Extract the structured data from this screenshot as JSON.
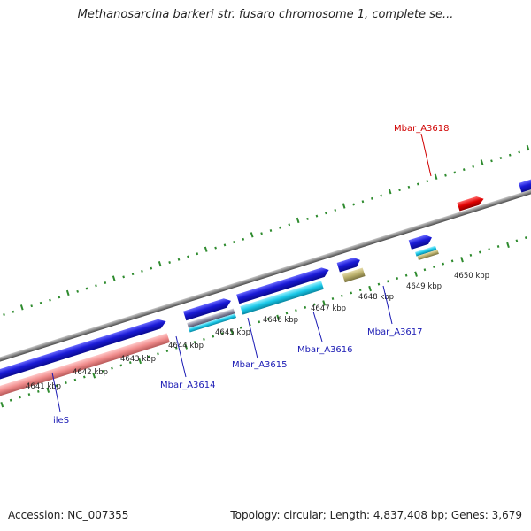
{
  "title": "Methanosarcina barkeri str. fusaro chromosome 1, complete se...",
  "footer": {
    "accession": "Accession: NC_007355",
    "summary": "Topology: circular; Length: 4,837,408 bp; Genes: 3,679"
  },
  "colors": {
    "backbone": "#8a8a8a",
    "tick": "#2e8b2e",
    "gene_forward": "#1a1ad6",
    "gene_selected": "#e00000",
    "rrna": "#f08c8c",
    "feature_cyan": "#19c8e8",
    "feature_olive": "#b8ae6a",
    "label_blue": "#1a1ab4",
    "label_red": "#d00000"
  },
  "tick_labels": [
    {
      "text": "4641 kbp",
      "x": 4641
    },
    {
      "text": "4642 kbp",
      "x": 4642
    },
    {
      "text": "4643 kbp",
      "x": 4643
    },
    {
      "text": "4644 kbp",
      "x": 4644
    },
    {
      "text": "4645 kbp",
      "x": 4645
    },
    {
      "text": "4646 kbp",
      "x": 4646
    },
    {
      "text": "4647 kbp",
      "x": 4647
    },
    {
      "text": "4648 kbp",
      "x": 4648
    },
    {
      "text": "4649 kbp",
      "x": 4649
    },
    {
      "text": "4650 kbp",
      "x": 4650
    }
  ],
  "gene_labels": [
    {
      "text": "ileS",
      "color": "label_blue"
    },
    {
      "text": "Mbar_A3614",
      "color": "label_blue"
    },
    {
      "text": "Mbar_A3615",
      "color": "label_blue"
    },
    {
      "text": "Mbar_A3616",
      "color": "label_blue"
    },
    {
      "text": "Mbar_A3617",
      "color": "label_blue"
    },
    {
      "text": "Mbar_A3618",
      "color": "label_red"
    }
  ]
}
